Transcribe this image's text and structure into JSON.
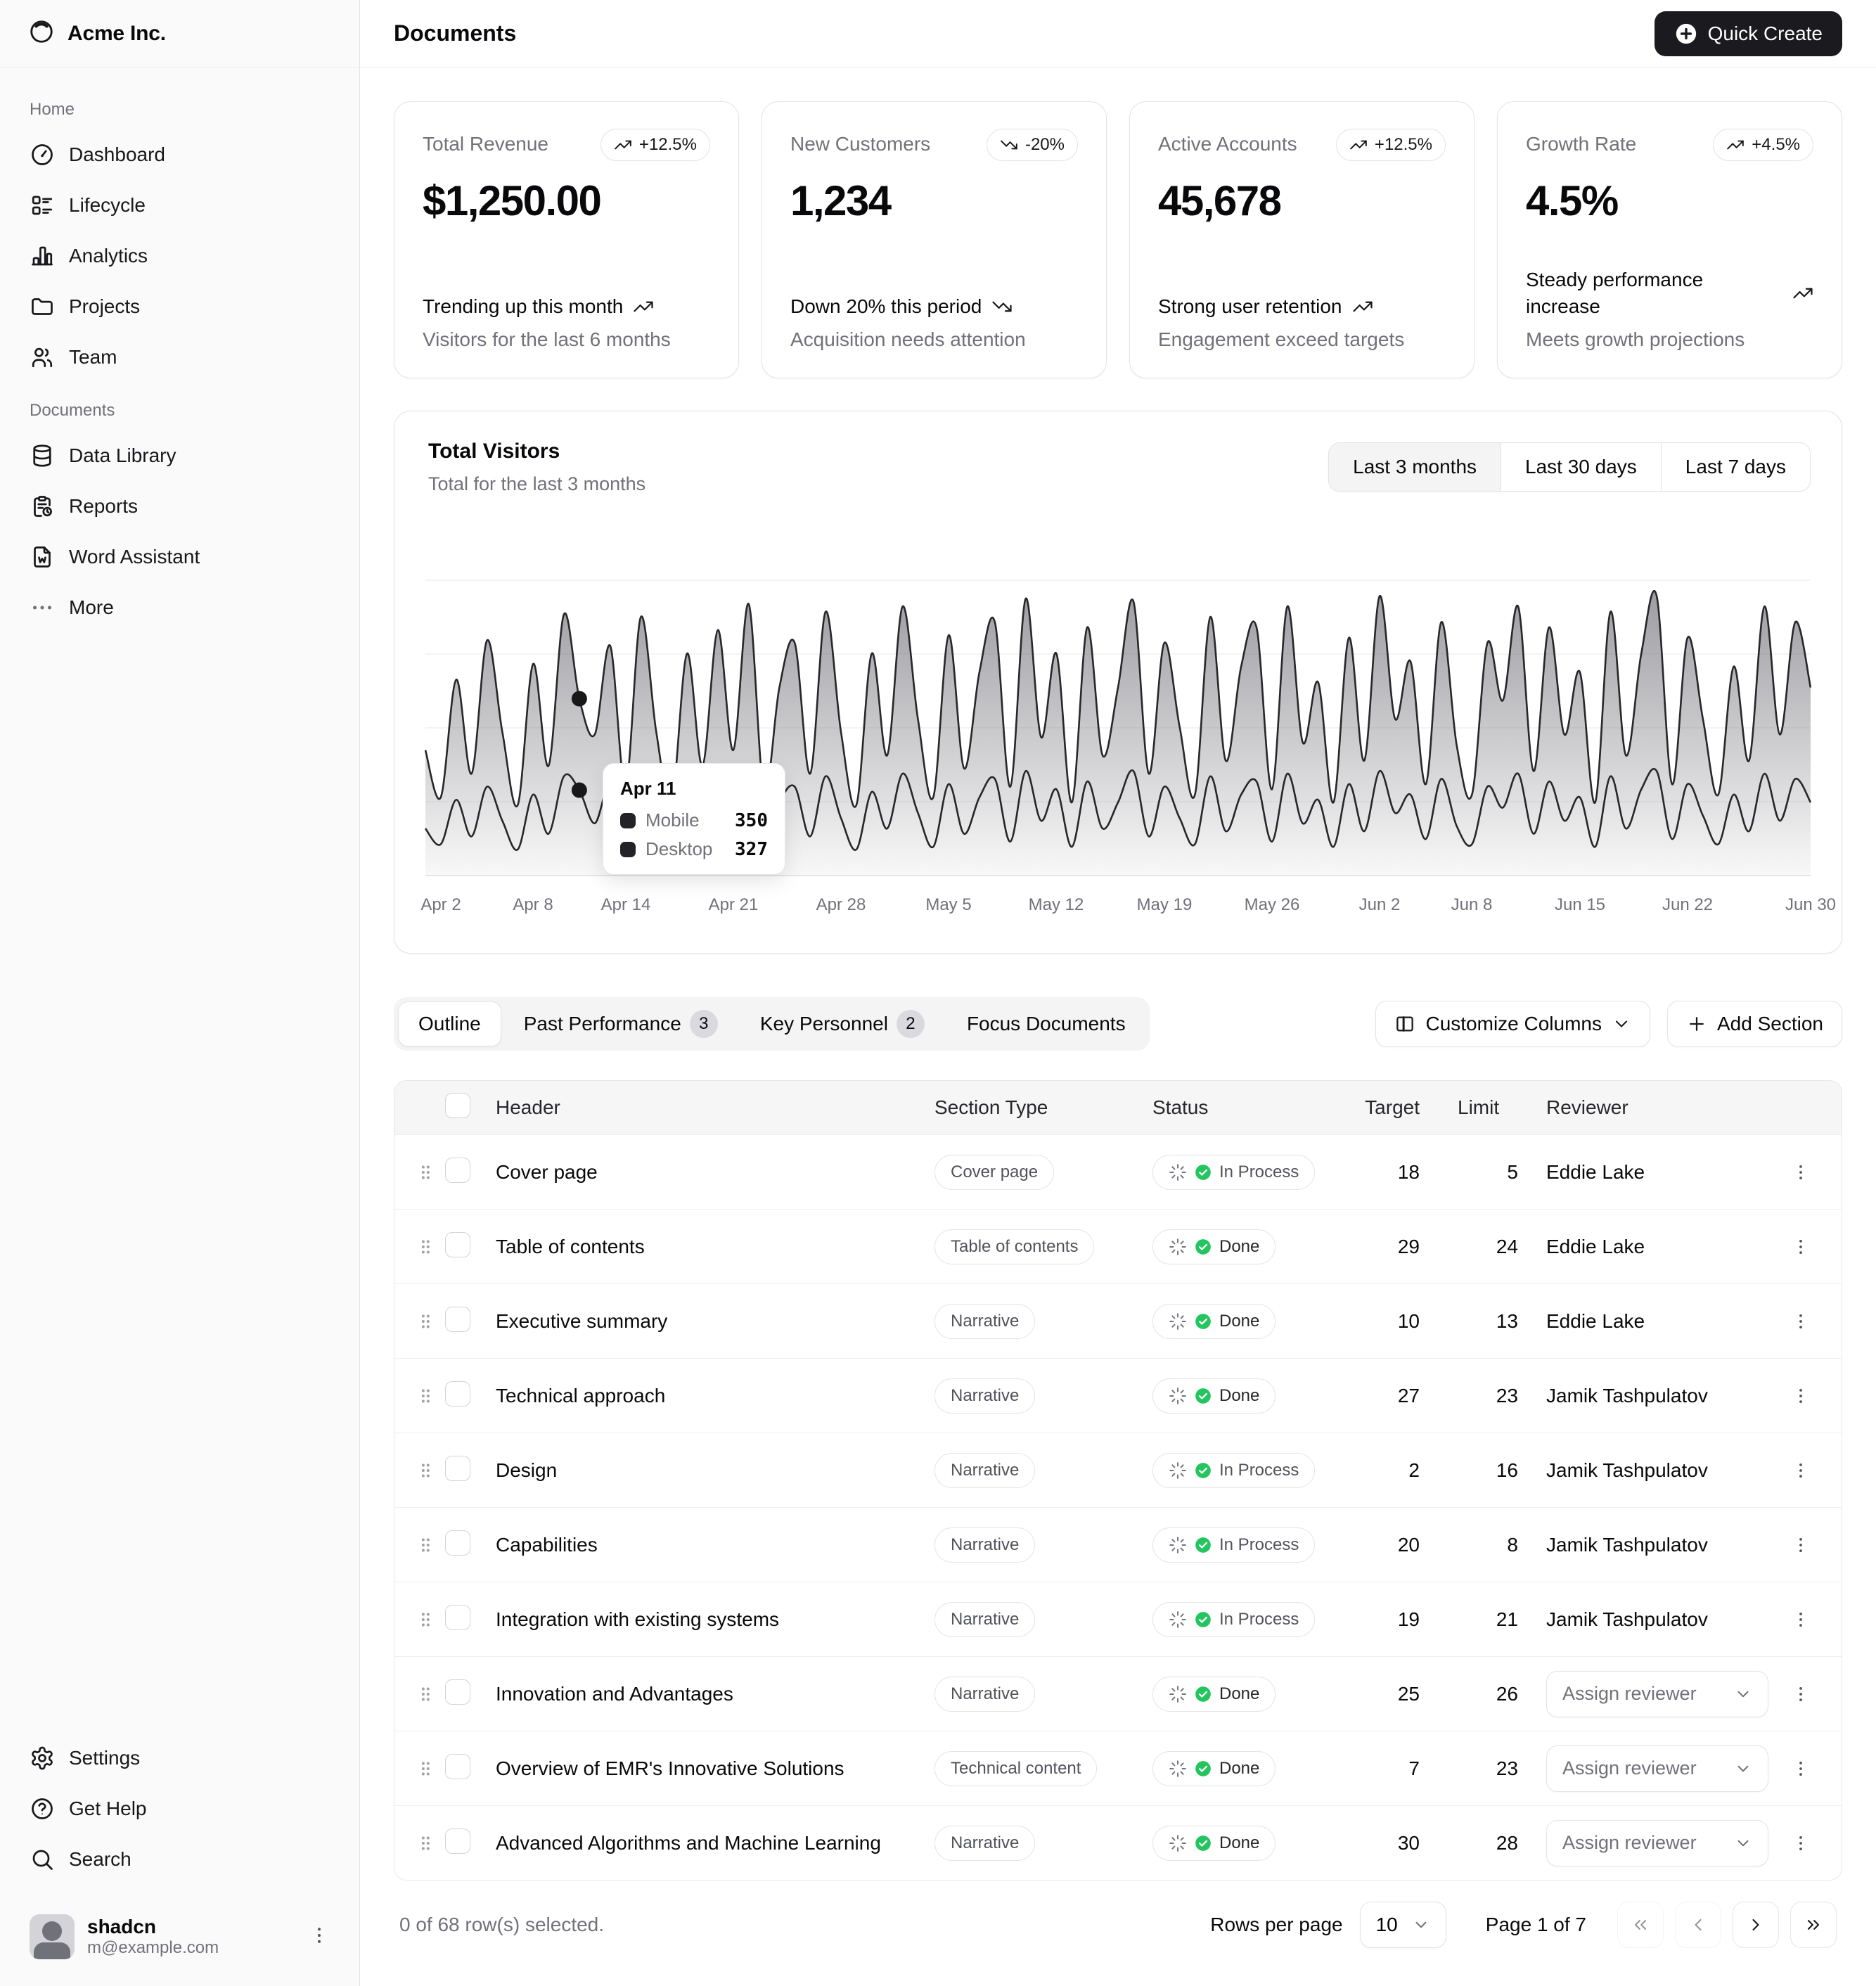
{
  "sidebar": {
    "brand": "Acme Inc.",
    "logo_icon": "inner-shadow-top-icon",
    "groups": [
      {
        "label": "Home",
        "items": [
          {
            "label": "Dashboard",
            "icon": "gauge-icon"
          },
          {
            "label": "Lifecycle",
            "icon": "list-details-icon"
          },
          {
            "label": "Analytics",
            "icon": "bar-chart-icon"
          },
          {
            "label": "Projects",
            "icon": "folder-icon"
          },
          {
            "label": "Team",
            "icon": "users-icon"
          }
        ]
      },
      {
        "label": "Documents",
        "items": [
          {
            "label": "Data Library",
            "icon": "database-icon"
          },
          {
            "label": "Reports",
            "icon": "report-icon"
          },
          {
            "label": "Word Assistant",
            "icon": "file-word-icon"
          },
          {
            "label": "More",
            "icon": "dots-icon"
          }
        ]
      }
    ],
    "footer_items": [
      {
        "label": "Settings",
        "icon": "gear-icon"
      },
      {
        "label": "Get Help",
        "icon": "help-icon"
      },
      {
        "label": "Search",
        "icon": "search-icon"
      }
    ],
    "user": {
      "name": "shadcn",
      "email": "m@example.com"
    }
  },
  "header": {
    "title": "Documents",
    "quick_create_label": "Quick Create"
  },
  "stat_cards": [
    {
      "label": "Total Revenue",
      "badge": "+12.5%",
      "trend": "up",
      "value": "$1,250.00",
      "foot_main": "Trending up this month",
      "foot_sub": "Visitors for the last 6 months"
    },
    {
      "label": "New Customers",
      "badge": "-20%",
      "trend": "down",
      "value": "1,234",
      "foot_main": "Down 20% this period",
      "foot_sub": "Acquisition needs attention"
    },
    {
      "label": "Active Accounts",
      "badge": "+12.5%",
      "trend": "up",
      "value": "45,678",
      "foot_main": "Strong user retention",
      "foot_sub": "Engagement exceed targets"
    },
    {
      "label": "Growth Rate",
      "badge": "+4.5%",
      "trend": "up",
      "value": "4.5%",
      "foot_main": "Steady performance increase",
      "foot_sub": "Meets growth projections"
    }
  ],
  "visitors_card": {
    "title": "Total Visitors",
    "subtitle": "Total for the last 3 months",
    "ranges": [
      {
        "label": "Last 3 months",
        "active": true
      },
      {
        "label": "Last 30 days",
        "active": false
      },
      {
        "label": "Last 7 days",
        "active": false
      }
    ]
  },
  "chart_data": {
    "type": "area",
    "stacked": true,
    "title": "Total Visitors",
    "subtitle": "Total for the last 3 months",
    "x_unit": "day",
    "n_points": 91,
    "x_start": "Apr 1",
    "x_end": "Jun 30",
    "ylim": [
      0,
      1400
    ],
    "grid": "horizontal",
    "legend_position": "tooltip",
    "series": [
      {
        "name": "Desktop",
        "values": [
          180,
          120,
          290,
          150,
          340,
          210,
          100,
          310,
          160,
          380,
          327,
          200,
          350,
          130,
          390,
          230,
          110,
          330,
          170,
          370,
          190,
          400,
          120,
          280,
          340,
          150,
          380,
          220,
          100,
          320,
          180,
          390,
          240,
          110,
          350,
          160,
          300,
          370,
          130,
          400,
          210,
          330,
          110,
          360,
          180,
          280,
          400,
          150,
          340,
          220,
          120,
          380,
          170,
          310,
          360,
          130,
          390,
          200,
          290,
          110,
          350,
          170,
          400,
          240,
          310,
          140,
          370,
          190,
          120,
          340,
          260,
          390,
          160,
          360,
          210,
          300,
          110,
          380,
          180,
          330,
          400,
          140,
          350,
          230,
          120,
          310,
          170,
          390,
          210,
          370,
          280
        ]
      },
      {
        "name": "Mobile",
        "values": [
          300,
          180,
          460,
          240,
          560,
          340,
          170,
          500,
          260,
          620,
          350,
          340,
          530,
          210,
          600,
          320,
          170,
          520,
          250,
          570,
          290,
          640,
          200,
          440,
          550,
          240,
          630,
          330,
          170,
          530,
          280,
          640,
          360,
          190,
          570,
          250,
          480,
          600,
          210,
          660,
          320,
          520,
          170,
          590,
          280,
          440,
          650,
          240,
          550,
          350,
          190,
          610,
          270,
          490,
          590,
          200,
          640,
          310,
          450,
          170,
          560,
          270,
          670,
          360,
          510,
          210,
          600,
          310,
          190,
          550,
          410,
          640,
          240,
          590,
          330,
          480,
          170,
          630,
          280,
          520,
          670,
          210,
          560,
          370,
          190,
          490,
          270,
          640,
          330,
          600,
          440
        ]
      }
    ],
    "x_ticks": [
      {
        "label": "Apr 2",
        "i": 1
      },
      {
        "label": "Apr 8",
        "i": 7
      },
      {
        "label": "Apr 14",
        "i": 13
      },
      {
        "label": "Apr 21",
        "i": 20
      },
      {
        "label": "Apr 28",
        "i": 27
      },
      {
        "label": "May 5",
        "i": 34
      },
      {
        "label": "May 12",
        "i": 41
      },
      {
        "label": "May 19",
        "i": 48
      },
      {
        "label": "May 26",
        "i": 55
      },
      {
        "label": "Jun 2",
        "i": 62
      },
      {
        "label": "Jun 8",
        "i": 68
      },
      {
        "label": "Jun 15",
        "i": 75
      },
      {
        "label": "Jun 22",
        "i": 82
      },
      {
        "label": "Jun 30",
        "i": 90
      }
    ],
    "tooltip": {
      "date": "Apr 11",
      "index": 10,
      "rows": [
        {
          "label": "Mobile",
          "value": 350
        },
        {
          "label": "Desktop",
          "value": 327
        }
      ]
    }
  },
  "tabs": [
    {
      "label": "Outline",
      "active": true
    },
    {
      "label": "Past Performance",
      "badge": "3"
    },
    {
      "label": "Key Personnel",
      "badge": "2"
    },
    {
      "label": "Focus Documents"
    }
  ],
  "table_actions": {
    "customize": "Customize Columns",
    "add": "Add Section"
  },
  "table": {
    "assign_label": "Assign reviewer",
    "columns": [
      "Header",
      "Section Type",
      "Status",
      "Target",
      "Limit",
      "Reviewer"
    ],
    "rows": [
      {
        "header": "Cover page",
        "type": "Cover page",
        "status": "In Process",
        "target": "18",
        "limit": "5",
        "reviewer": "Eddie Lake",
        "assign": false
      },
      {
        "header": "Table of contents",
        "type": "Table of contents",
        "status": "Done",
        "target": "29",
        "limit": "24",
        "reviewer": "Eddie Lake",
        "assign": false
      },
      {
        "header": "Executive summary",
        "type": "Narrative",
        "status": "Done",
        "target": "10",
        "limit": "13",
        "reviewer": "Eddie Lake",
        "assign": false
      },
      {
        "header": "Technical approach",
        "type": "Narrative",
        "status": "Done",
        "target": "27",
        "limit": "23",
        "reviewer": "Jamik Tashpulatov",
        "assign": false
      },
      {
        "header": "Design",
        "type": "Narrative",
        "status": "In Process",
        "target": "2",
        "limit": "16",
        "reviewer": "Jamik Tashpulatov",
        "assign": false
      },
      {
        "header": "Capabilities",
        "type": "Narrative",
        "status": "In Process",
        "target": "20",
        "limit": "8",
        "reviewer": "Jamik Tashpulatov",
        "assign": false
      },
      {
        "header": "Integration with existing systems",
        "type": "Narrative",
        "status": "In Process",
        "target": "19",
        "limit": "21",
        "reviewer": "Jamik Tashpulatov",
        "assign": false
      },
      {
        "header": "Innovation and Advantages",
        "type": "Narrative",
        "status": "Done",
        "target": "25",
        "limit": "26",
        "reviewer": "",
        "assign": true
      },
      {
        "header": "Overview of EMR's Innovative Solutions",
        "type": "Technical content",
        "status": "Done",
        "target": "7",
        "limit": "23",
        "reviewer": "",
        "assign": true
      },
      {
        "header": "Advanced Algorithms and Machine Learning",
        "type": "Narrative",
        "status": "Done",
        "target": "30",
        "limit": "28",
        "reviewer": "",
        "assign": true
      }
    ]
  },
  "footer": {
    "selected": "0 of 68 row(s) selected.",
    "rows_per_page_label": "Rows per page",
    "rows_per_page": "10",
    "page_info": "Page 1 of 7"
  }
}
